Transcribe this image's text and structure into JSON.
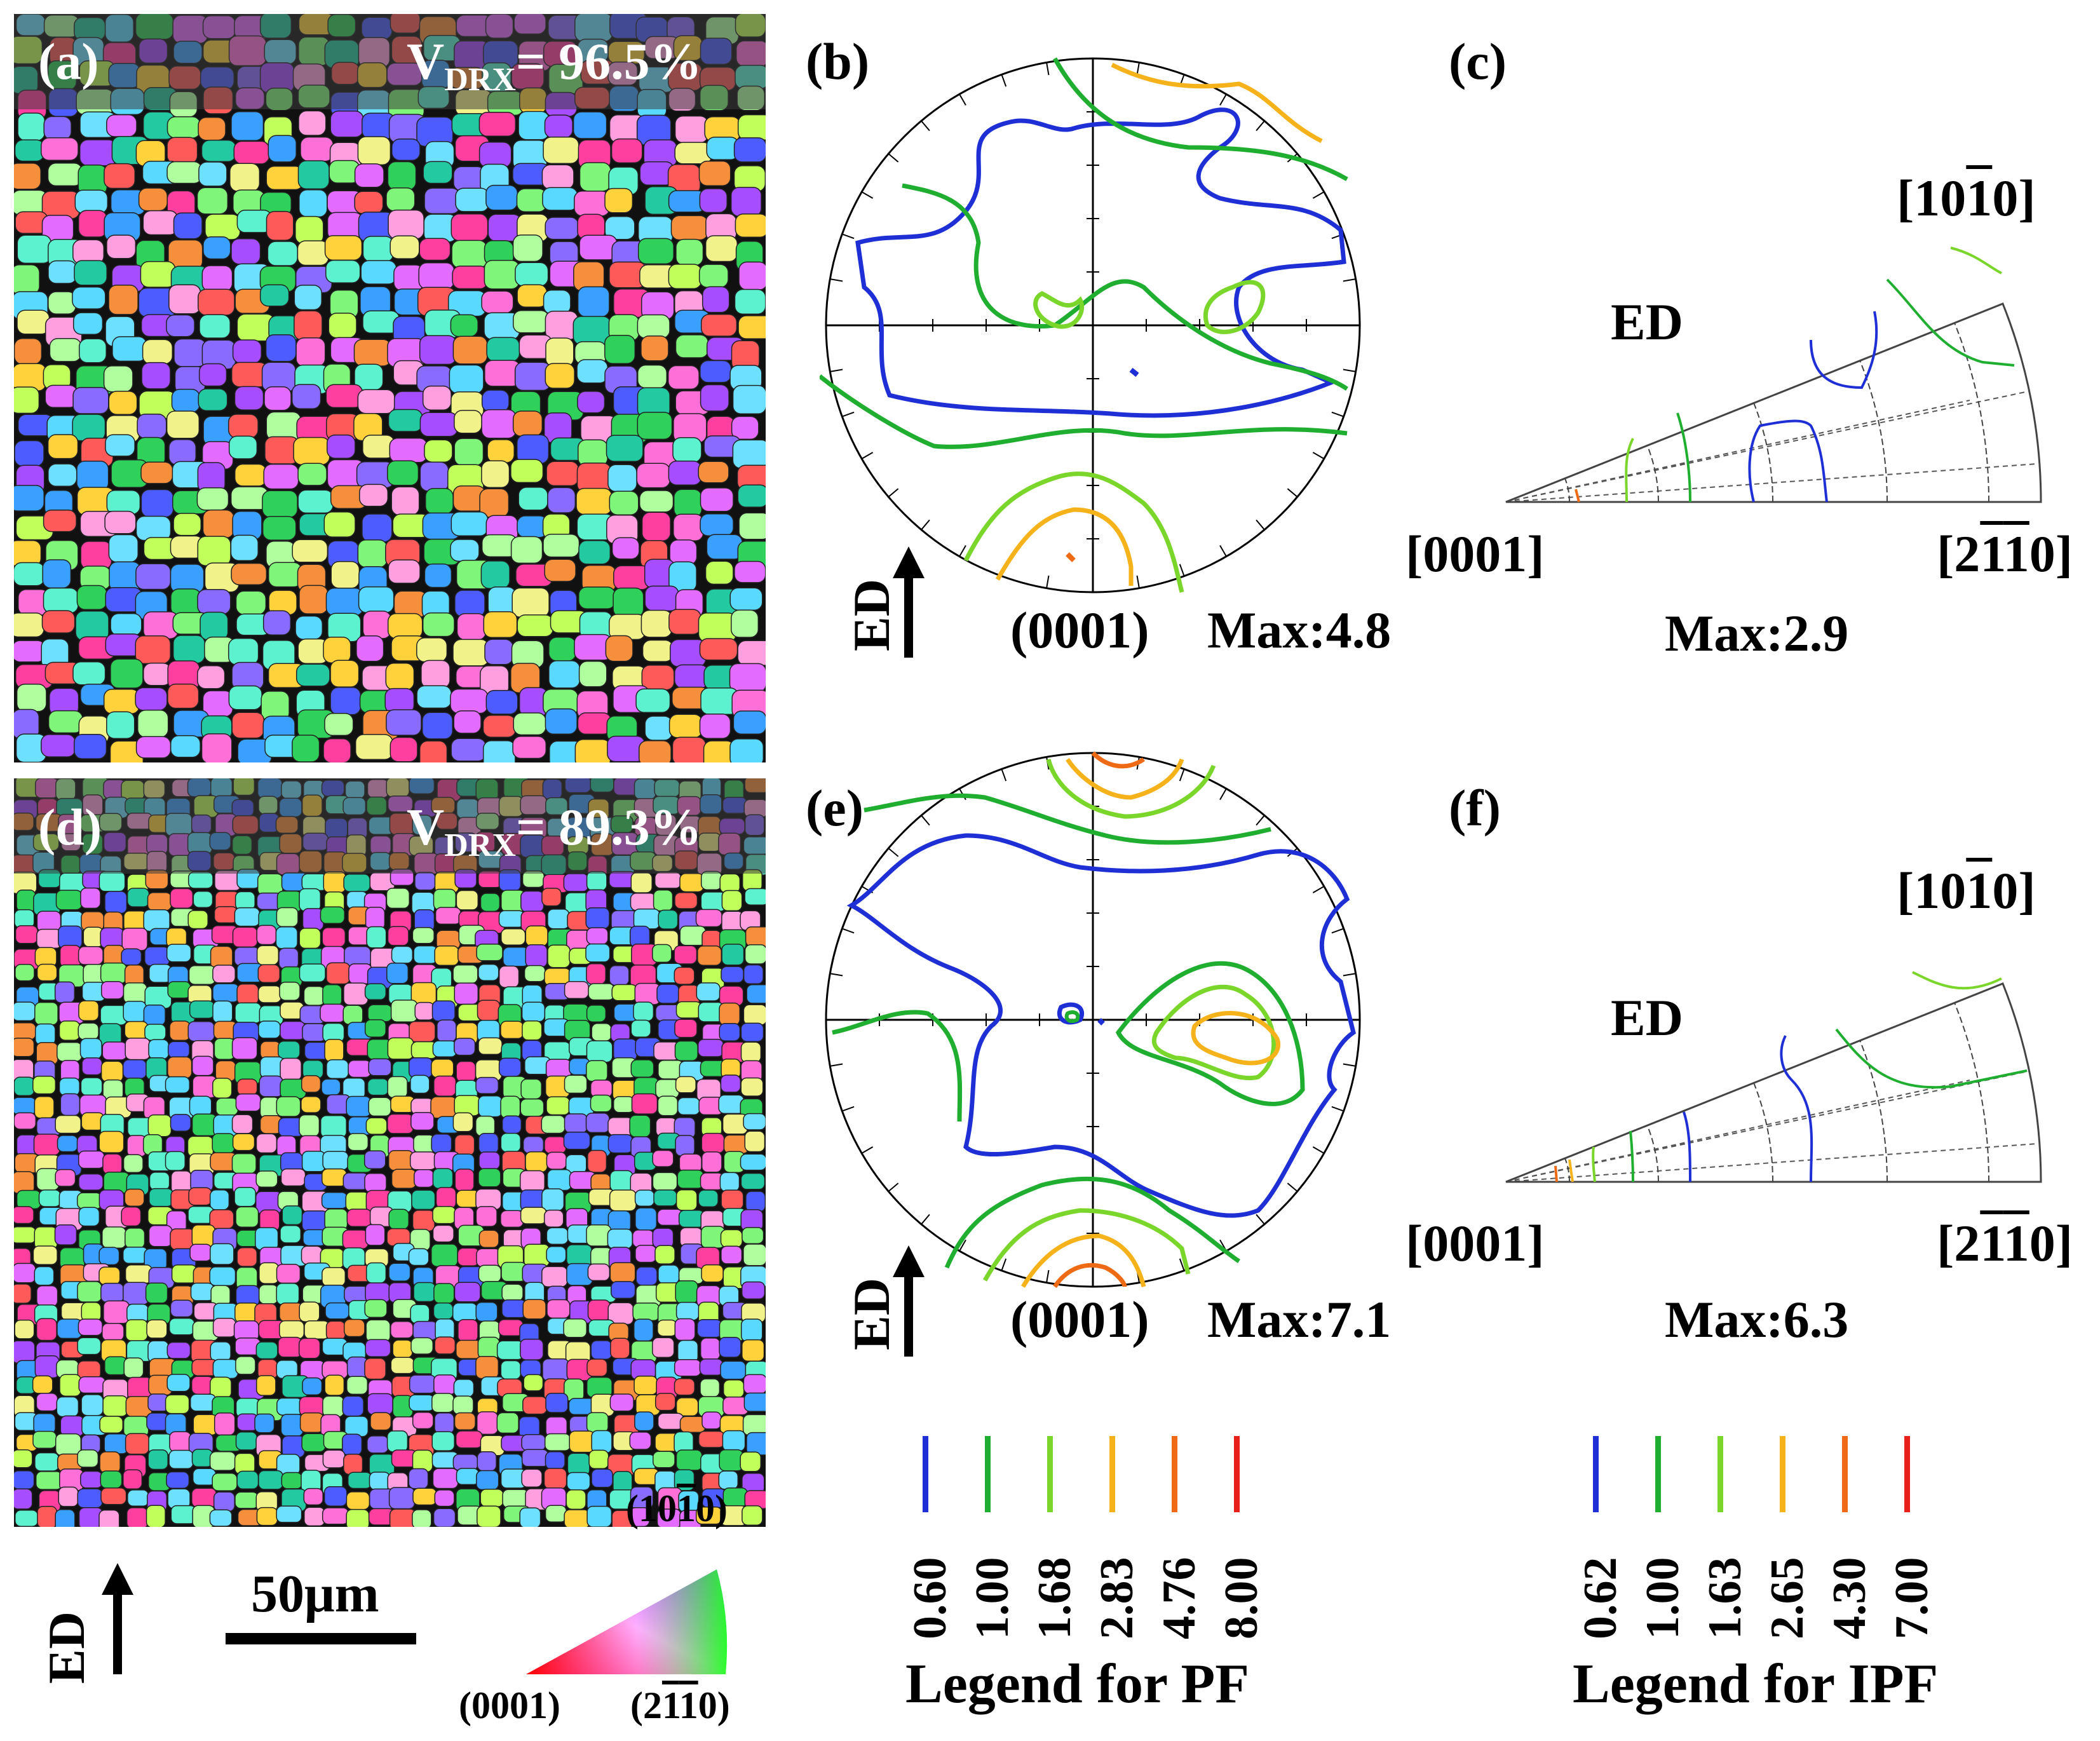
{
  "panels": {
    "a": {
      "label": "(a)",
      "vdrx_prefix": "V",
      "vdrx_sub": "DRX",
      "vdrx_value": "= 96.5%"
    },
    "b": {
      "label": "(b)",
      "plane": "(0001)",
      "max": "Max:4.8",
      "direction": "ED"
    },
    "c": {
      "label": "(c)",
      "direction": "ED",
      "corner_top": [
        "[10",
        "1",
        "0]"
      ],
      "corner_left": "[0001]",
      "corner_right": [
        "[2",
        "1",
        "1",
        "0]"
      ],
      "max": "Max:2.9"
    },
    "d": {
      "label": "(d)",
      "vdrx_prefix": "V",
      "vdrx_sub": "DRX",
      "vdrx_value": "= 89.3%"
    },
    "e": {
      "label": "(e)",
      "plane": "(0001)",
      "max": "Max:7.1",
      "direction": "ED"
    },
    "f": {
      "label": "(f)",
      "direction": "ED",
      "corner_top": [
        "[10",
        "1",
        "0]"
      ],
      "corner_left": "[0001]",
      "corner_right": [
        "[2",
        "1",
        "1",
        "0]"
      ],
      "max": "Max:6.3"
    }
  },
  "map_footer": {
    "direction": "ED",
    "scale_bar": "50μm",
    "key_top": [
      "(10",
      "1",
      "0)"
    ],
    "key_left": "(0001)",
    "key_right": [
      "(2",
      "1",
      "1",
      "0)"
    ]
  },
  "legend_pf": {
    "title": "Legend for PF",
    "levels": [
      "0.60",
      "1.00",
      "1.68",
      "2.83",
      "4.76",
      "8.00"
    ],
    "colors": [
      "#1f2fd6",
      "#1fae2f",
      "#7ad62a",
      "#f5b21a",
      "#ef6a14",
      "#e8201a"
    ]
  },
  "legend_ipf": {
    "title": "Legend for IPF",
    "levels": [
      "0.62",
      "1.00",
      "1.63",
      "2.65",
      "4.30",
      "7.00"
    ],
    "colors": [
      "#1f2fd6",
      "#1fae2f",
      "#7ad62a",
      "#f5b21a",
      "#ef6a14",
      "#e8201a"
    ]
  }
}
